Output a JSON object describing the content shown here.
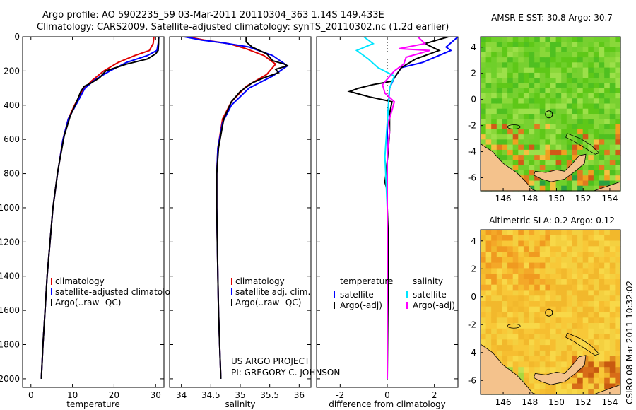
{
  "header": {
    "title_line1": "Argo profile: AO 5902235_59 03-Mar-2011 20110304_363 1.14S 149.433E",
    "title_line2": "Climatology: CARS2009. Satellite-adjusted climatology: synTS_20110302.nc (1.2d earlier)"
  },
  "side_label": "CSIRO 08-Mar-2011 10:32:02",
  "colors": {
    "climatology": "#e00000",
    "satellite": "#0000ff",
    "argo": "#000000",
    "satellite_sal": "#00e5ff",
    "argo_sal": "#ff00ff",
    "land": "#f4c28c"
  },
  "chart_data": [
    {
      "type": "line",
      "panel": "temperature",
      "xlabel": "temperature",
      "xlim": [
        -2,
        32
      ],
      "ylim": [
        2050,
        0
      ],
      "xticks": [
        0,
        10,
        20,
        30
      ],
      "yticks": [
        0,
        200,
        400,
        600,
        800,
        1000,
        1200,
        1400,
        1600,
        1800,
        2000
      ],
      "legend": [
        "climatology",
        "satellite-adjusted climatology",
        "Argo(..raw -QC)"
      ],
      "series": [
        {
          "name": "climatology",
          "color": "#e00000",
          "points": [
            [
              29.6,
              0
            ],
            [
              29.4,
              40
            ],
            [
              28.5,
              80
            ],
            [
              25,
              110
            ],
            [
              21,
              150
            ],
            [
              17.5,
              200
            ],
            [
              14.5,
              260
            ],
            [
              12.5,
              310
            ],
            [
              10.5,
              400
            ],
            [
              9,
              480
            ],
            [
              7.7,
              600
            ],
            [
              6.4,
              800
            ],
            [
              5.3,
              1000
            ],
            [
              4.6,
              1200
            ],
            [
              3.9,
              1400
            ],
            [
              3.4,
              1600
            ],
            [
              2.9,
              1800
            ],
            [
              2.5,
              2000
            ]
          ]
        },
        {
          "name": "satellite-adjusted climatology",
          "color": "#0000ff",
          "points": [
            [
              30.8,
              0
            ],
            [
              30.6,
              40
            ],
            [
              30.3,
              80
            ],
            [
              28,
              110
            ],
            [
              23,
              150
            ],
            [
              19,
              200
            ],
            [
              15.5,
              250
            ],
            [
              13,
              300
            ],
            [
              10.8,
              400
            ],
            [
              9,
              480
            ],
            [
              7.7,
              600
            ],
            [
              6.4,
              800
            ],
            [
              5.3,
              1000
            ],
            [
              4.6,
              1200
            ],
            [
              3.9,
              1400
            ],
            [
              3.4,
              1600
            ],
            [
              2.9,
              1800
            ],
            [
              2.5,
              2000
            ]
          ]
        },
        {
          "name": "Argo(..raw -QC)",
          "color": "#000000",
          "points": [
            [
              30.7,
              0
            ],
            [
              30.7,
              40
            ],
            [
              30.6,
              80
            ],
            [
              30,
              100
            ],
            [
              28,
              130
            ],
            [
              23,
              160
            ],
            [
              18,
              200
            ],
            [
              16.5,
              240
            ],
            [
              14.5,
              270
            ],
            [
              12.8,
              290
            ],
            [
              12,
              320
            ],
            [
              11,
              380
            ],
            [
              9.5,
              460
            ],
            [
              8,
              580
            ],
            [
              6.5,
              780
            ],
            [
              5.3,
              1000
            ],
            [
              4.6,
              1200
            ],
            [
              3.9,
              1400
            ],
            [
              3.4,
              1600
            ],
            [
              2.9,
              1800
            ],
            [
              2.5,
              2000
            ]
          ]
        }
      ]
    },
    {
      "type": "line",
      "panel": "salinity",
      "xlabel": "salinity",
      "xlim": [
        33.8,
        36.2
      ],
      "ylim": [
        2050,
        0
      ],
      "xticks": [
        34,
        34.5,
        35,
        35.5,
        36
      ],
      "legend": [
        "climatology",
        "satellite adj. clim.",
        "Argo(..raw -QC)"
      ],
      "series": [
        {
          "name": "climatology",
          "color": "#e00000",
          "points": [
            [
              34.1,
              0
            ],
            [
              34.4,
              20
            ],
            [
              34.8,
              40
            ],
            [
              35.1,
              70
            ],
            [
              35.4,
              110
            ],
            [
              35.6,
              160
            ],
            [
              35.45,
              220
            ],
            [
              35.1,
              290
            ],
            [
              34.85,
              380
            ],
            [
              34.7,
              480
            ],
            [
              34.62,
              650
            ],
            [
              34.6,
              800
            ],
            [
              34.6,
              1000
            ],
            [
              34.61,
              1200
            ],
            [
              34.62,
              1400
            ],
            [
              34.63,
              1600
            ],
            [
              34.65,
              1800
            ],
            [
              34.67,
              2000
            ]
          ]
        },
        {
          "name": "satellite adj. clim.",
          "color": "#0000ff",
          "points": [
            [
              34.05,
              0
            ],
            [
              34.35,
              20
            ],
            [
              34.7,
              35
            ],
            [
              35.15,
              60
            ],
            [
              35.55,
              110
            ],
            [
              35.8,
              170
            ],
            [
              35.55,
              230
            ],
            [
              35.15,
              300
            ],
            [
              34.85,
              400
            ],
            [
              34.7,
              500
            ],
            [
              34.62,
              650
            ],
            [
              34.6,
              800
            ],
            [
              34.6,
              1000
            ],
            [
              34.61,
              1200
            ],
            [
              34.62,
              1400
            ],
            [
              34.63,
              1600
            ],
            [
              34.65,
              1800
            ],
            [
              34.67,
              2000
            ]
          ]
        },
        {
          "name": "Argo(..raw -QC)",
          "color": "#000000",
          "points": [
            [
              35.1,
              0
            ],
            [
              35.1,
              30
            ],
            [
              35.2,
              60
            ],
            [
              35.45,
              100
            ],
            [
              35.55,
              140
            ],
            [
              35.75,
              160
            ],
            [
              35.8,
              170
            ],
            [
              35.6,
              190
            ],
            [
              35.65,
              210
            ],
            [
              35.4,
              240
            ],
            [
              35.2,
              270
            ],
            [
              35,
              320
            ],
            [
              34.85,
              380
            ],
            [
              34.72,
              480
            ],
            [
              34.63,
              650
            ],
            [
              34.6,
              800
            ],
            [
              34.6,
              1000
            ],
            [
              34.61,
              1200
            ],
            [
              34.62,
              1400
            ],
            [
              34.63,
              1600
            ],
            [
              34.65,
              1800
            ],
            [
              34.67,
              2000
            ]
          ]
        }
      ]
    },
    {
      "type": "line",
      "panel": "difference",
      "xlabel": "difference from climatology",
      "xlim": [
        -3,
        3
      ],
      "ylim": [
        2050,
        0
      ],
      "xticks": [
        -2,
        0,
        2
      ],
      "legend_header": [
        "temperature",
        "salinity"
      ],
      "legend": [
        "satellite",
        "Argo(-adj)",
        "satellite",
        "Argo(-adj)"
      ],
      "series": [
        {
          "name": "temperature satellite",
          "color": "#0000ff",
          "points": [
            [
              3,
              0
            ],
            [
              2.5,
              60
            ],
            [
              2.7,
              80
            ],
            [
              1.5,
              150
            ],
            [
              0.6,
              180
            ],
            [
              0.3,
              240
            ],
            [
              0.1,
              300
            ],
            [
              0.05,
              400
            ],
            [
              0,
              500
            ],
            [
              0,
              800
            ],
            [
              0,
              1000
            ],
            [
              0,
              2000
            ]
          ]
        },
        {
          "name": "temperature Argo(-adj)",
          "color": "#000000",
          "points": [
            [
              2.6,
              0
            ],
            [
              1.6,
              40
            ],
            [
              2.2,
              80
            ],
            [
              1.2,
              130
            ],
            [
              0.6,
              180
            ],
            [
              0.2,
              260
            ],
            [
              -0.6,
              280
            ],
            [
              -1.2,
              300
            ],
            [
              -1.6,
              320
            ],
            [
              -0.8,
              350
            ],
            [
              0.2,
              380
            ],
            [
              0.1,
              450
            ],
            [
              0.1,
              550
            ],
            [
              0.05,
              650
            ],
            [
              -0.05,
              800
            ],
            [
              -0.1,
              850
            ],
            [
              0,
              900
            ],
            [
              0,
              1000
            ],
            [
              0.05,
              1200
            ],
            [
              0,
              2000
            ]
          ]
        },
        {
          "name": "salinity satellite",
          "color": "#00e5ff",
          "points": [
            [
              -1.0,
              0
            ],
            [
              -0.6,
              40
            ],
            [
              -1.3,
              80
            ],
            [
              -0.8,
              130
            ],
            [
              -0.4,
              180
            ],
            [
              0.3,
              230
            ],
            [
              0.1,
              300
            ],
            [
              0.05,
              400
            ],
            [
              0,
              500
            ],
            [
              -0.1,
              700
            ],
            [
              0,
              1000
            ],
            [
              0,
              2000
            ]
          ]
        },
        {
          "name": "salinity Argo(-adj)",
          "color": "#ff00ff",
          "points": [
            [
              1.3,
              0
            ],
            [
              1.6,
              40
            ],
            [
              0.5,
              70
            ],
            [
              1.8,
              80
            ],
            [
              0.8,
              120
            ],
            [
              0.7,
              160
            ],
            [
              0.3,
              200
            ],
            [
              -0.2,
              280
            ],
            [
              -0.1,
              330
            ],
            [
              0.3,
              380
            ],
            [
              0.2,
              430
            ],
            [
              0.05,
              500
            ],
            [
              0.1,
              560
            ],
            [
              0.05,
              600
            ],
            [
              0,
              700
            ],
            [
              0,
              1000
            ],
            [
              0,
              2000
            ]
          ]
        }
      ]
    },
    {
      "type": "heatmap",
      "panel": "sst_map",
      "title": "AMSR-E SST: 30.8 Argo: 30.7",
      "xlim": [
        144.3,
        154.8
      ],
      "ylim": [
        -7,
        4.8
      ],
      "xticks": [
        146,
        148,
        150,
        152,
        154
      ],
      "yticks": [
        4,
        2,
        0,
        -2,
        -4,
        -6
      ],
      "marker": [
        149.433,
        -1.14
      ]
    },
    {
      "type": "heatmap",
      "panel": "sla_map",
      "title": "Altimetric SLA: 0.2 Argo: 0.12",
      "xlim": [
        144.3,
        154.8
      ],
      "ylim": [
        -7,
        4.8
      ],
      "xticks": [
        146,
        148,
        150,
        152,
        154
      ],
      "yticks": [
        4,
        2,
        0,
        -2,
        -4,
        -6
      ],
      "marker": [
        149.433,
        -1.14
      ]
    }
  ],
  "credits": {
    "line1": "US ARGO PROJECT",
    "line2": "PI: GREGORY C. JOHNSON"
  }
}
